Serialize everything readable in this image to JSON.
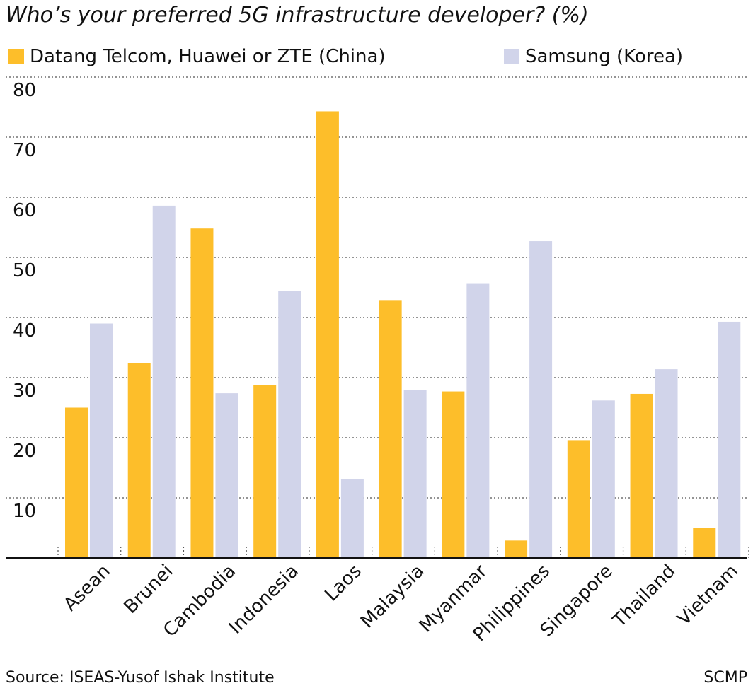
{
  "chart_data": {
    "type": "bar",
    "title": "Who’s your preferred 5G infrastructure developer? (%)",
    "categories": [
      "Asean",
      "Brunei",
      "Cambodia",
      "Indonesia",
      "Laos",
      "Malaysia",
      "Myanmar",
      "Philippines",
      "Singapore",
      "Thailand",
      "Vietnam"
    ],
    "series": [
      {
        "name": "Datang Telcom, Huawei or ZTE (China)",
        "color": "#FDBE2A",
        "values": [
          25.0,
          32.4,
          54.8,
          28.8,
          74.3,
          42.9,
          27.7,
          2.9,
          19.6,
          27.3,
          5.0
        ]
      },
      {
        "name": "Samsung (Korea)",
        "color": "#D1D4EA",
        "values": [
          39.0,
          58.6,
          27.4,
          44.4,
          13.1,
          27.9,
          45.7,
          52.7,
          26.2,
          31.4,
          39.3
        ]
      }
    ],
    "yticks": [
      10,
      20,
      30,
      40,
      50,
      60,
      70,
      80
    ],
    "ylim": [
      0,
      80
    ],
    "grid": true,
    "legend": "top",
    "xlabel": "",
    "ylabel": ""
  },
  "footer": {
    "source": "Source: ISEAS-Yusof Ishak Institute",
    "credit": "SCMP"
  }
}
